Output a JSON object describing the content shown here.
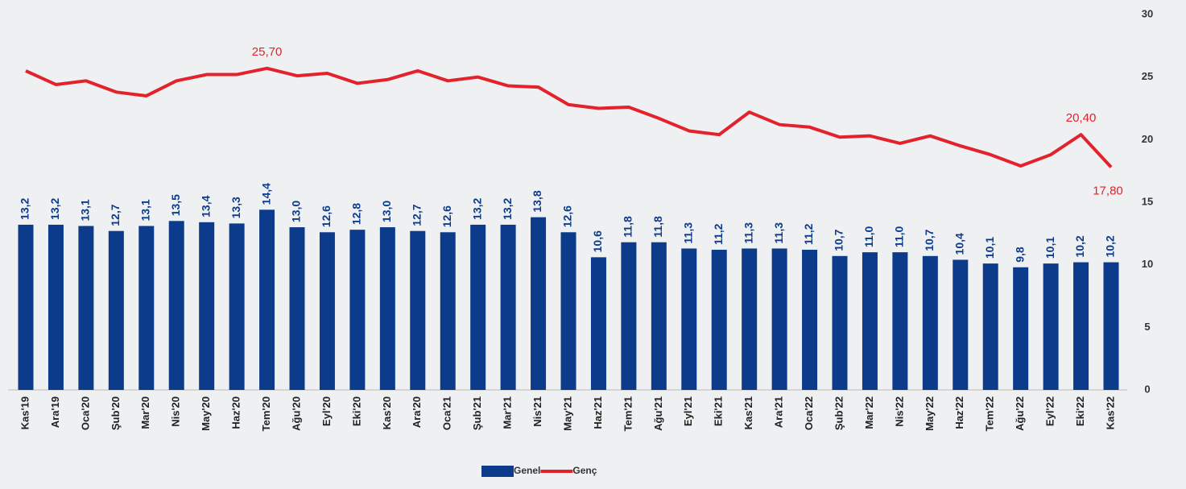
{
  "chart_data": {
    "type": "bar-line",
    "categories": [
      "Kas'19",
      "Ara'19",
      "Oca'20",
      "Şub'20",
      "Mar'20",
      "Nis'20",
      "May'20",
      "Haz'20",
      "Tem'20",
      "Ağu'20",
      "Eyl'20",
      "Eki'20",
      "Kas'20",
      "Ara'20",
      "Oca'21",
      "Şub'21",
      "Mar'21",
      "Nis'21",
      "May'21",
      "Haz'21",
      "Tem'21",
      "Ağu'21",
      "Eyl'21",
      "Eki'21",
      "Kas'21",
      "Ara'21",
      "Oca'22",
      "Şub'22",
      "Mar'22",
      "Nis'22",
      "May'22",
      "Haz'22",
      "Tem'22",
      "Ağu'22",
      "Eyl'22",
      "Eki'22",
      "Kas'22"
    ],
    "series": [
      {
        "name": "Genel",
        "type": "bar",
        "color": "#0d3b8c",
        "values": [
          13.2,
          13.2,
          13.1,
          12.7,
          13.1,
          13.5,
          13.4,
          13.3,
          14.4,
          13.0,
          12.6,
          12.8,
          13.0,
          12.7,
          12.6,
          13.2,
          13.2,
          13.8,
          12.6,
          10.6,
          11.8,
          11.8,
          11.3,
          11.2,
          11.3,
          11.3,
          11.2,
          10.7,
          11.0,
          11.0,
          10.7,
          10.4,
          10.1,
          9.8,
          10.1,
          10.2,
          10.2
        ],
        "value_labels": [
          "13,2",
          "13,2",
          "13,1",
          "12,7",
          "13,1",
          "13,5",
          "13,4",
          "13,3",
          "14,4",
          "13,0",
          "12,6",
          "12,8",
          "13,0",
          "12,7",
          "12,6",
          "13,2",
          "13,2",
          "13,8",
          "12,6",
          "10,6",
          "11,8",
          "11,8",
          "11,3",
          "11,2",
          "11,3",
          "11,3",
          "11,2",
          "10,7",
          "11,0",
          "11,0",
          "10,7",
          "10,4",
          "10,1",
          "9,8",
          "10,1",
          "10,2",
          "10,2"
        ]
      },
      {
        "name": "Genç",
        "type": "line",
        "color": "#e3222c",
        "values": [
          25.5,
          24.4,
          24.7,
          23.8,
          23.5,
          24.7,
          25.2,
          25.2,
          25.7,
          25.1,
          25.3,
          24.5,
          24.8,
          25.5,
          24.7,
          25.0,
          24.3,
          24.2,
          22.8,
          22.5,
          22.6,
          21.7,
          20.7,
          20.4,
          22.2,
          21.2,
          21.0,
          20.2,
          20.3,
          19.7,
          20.3,
          19.5,
          18.8,
          17.9,
          18.8,
          20.4,
          17.8
        ],
        "value_labels": [
          null,
          null,
          null,
          null,
          null,
          null,
          null,
          null,
          "25,70",
          null,
          null,
          null,
          null,
          null,
          null,
          null,
          null,
          null,
          null,
          null,
          null,
          null,
          null,
          null,
          null,
          null,
          null,
          null,
          null,
          null,
          null,
          null,
          null,
          null,
          null,
          "20,40",
          "17,80"
        ]
      }
    ],
    "ylim": [
      0,
      30
    ],
    "yticks": [
      0,
      5,
      10,
      15,
      20,
      25,
      30
    ],
    "y_axis_side": "right",
    "grid": false,
    "legend": "bottom"
  }
}
